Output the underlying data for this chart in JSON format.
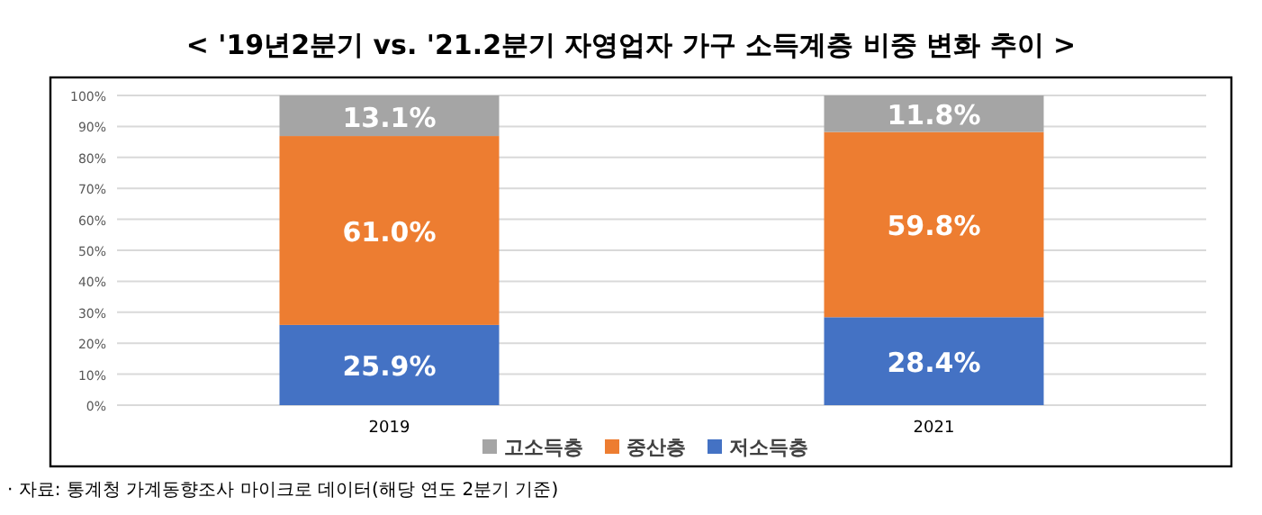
{
  "chart_data": {
    "type": "bar",
    "stacked": true,
    "title": "< '19년2분기 vs. '21.2분기 자영업자 가구 소득계층 비중 변화 추이 >",
    "categories": [
      "2019",
      "2021"
    ],
    "series": [
      {
        "name": "저소득층",
        "color": "#4472c4",
        "values": [
          25.9,
          28.4
        ],
        "value_labels": [
          "25.9%",
          "28.4%"
        ]
      },
      {
        "name": "중산층",
        "color": "#ed7d31",
        "values": [
          61.0,
          59.8
        ],
        "value_labels": [
          "61.0%",
          "59.8%"
        ]
      },
      {
        "name": "고소득층",
        "color": "#a5a5a5",
        "values": [
          13.1,
          11.8
        ],
        "value_labels": [
          "13.1%",
          "11.8%"
        ]
      }
    ],
    "ylim": [
      0,
      100
    ],
    "yticks": [
      {
        "value": 0,
        "label": "0%"
      },
      {
        "value": 10,
        "label": "10%"
      },
      {
        "value": 20,
        "label": "20%"
      },
      {
        "value": 30,
        "label": "30%"
      },
      {
        "value": 40,
        "label": "40%"
      },
      {
        "value": 50,
        "label": "50%"
      },
      {
        "value": 60,
        "label": "60%"
      },
      {
        "value": 70,
        "label": "70%"
      },
      {
        "value": 80,
        "label": "80%"
      },
      {
        "value": 90,
        "label": "90%"
      },
      {
        "value": 100,
        "label": "100%"
      }
    ],
    "grid": "y",
    "legend": "bottom",
    "annotations": [
      "· 자료: 통계청 가계동향조사 마이크로 데이터(해당 연도 2분기 기준)"
    ]
  }
}
